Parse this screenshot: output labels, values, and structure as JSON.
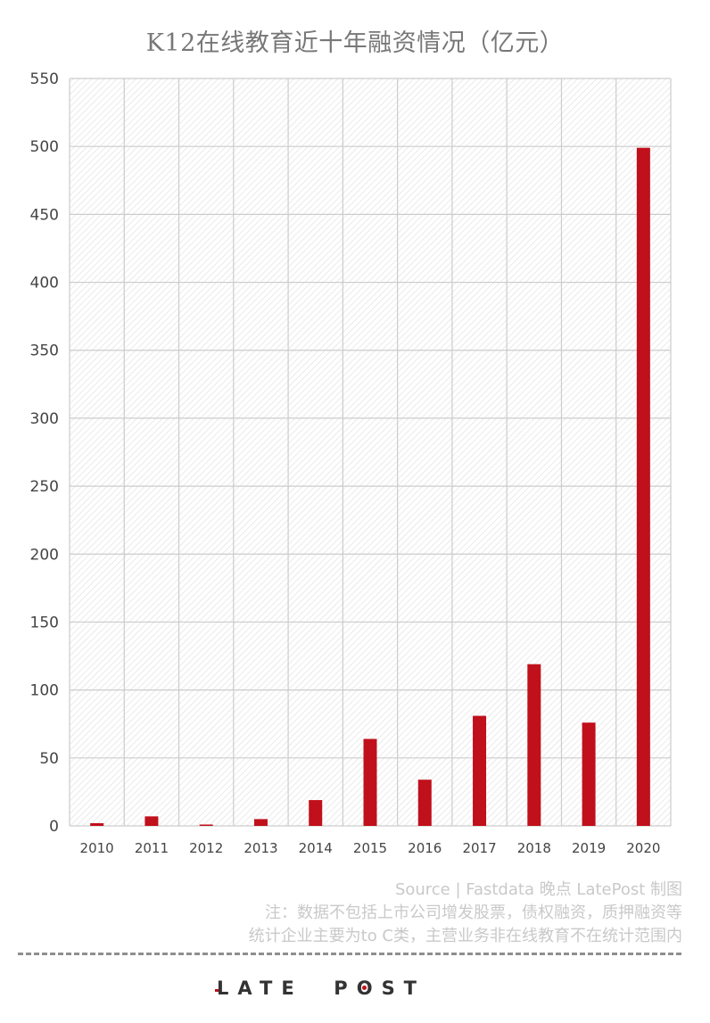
{
  "chart_data": {
    "type": "bar",
    "title": "K12在线教育近十年融资情况（亿元）",
    "categories": [
      "2010",
      "2011",
      "2012",
      "2013",
      "2014",
      "2015",
      "2016",
      "2017",
      "2018",
      "2019",
      "2020"
    ],
    "values": [
      2,
      7,
      1,
      5,
      19,
      64,
      34,
      81,
      119,
      76,
      499
    ],
    "ylim": [
      0,
      550
    ],
    "yticks": [
      "0",
      "50",
      "100",
      "150",
      "200",
      "250",
      "300",
      "350",
      "400",
      "450",
      "500",
      "550"
    ],
    "xlabel": "",
    "ylabel": "",
    "grid": true,
    "bar_color": "#c0101b"
  },
  "footer": {
    "source": "Source | Fastdata    晚点 LatePost 制图",
    "note_line_1": "注：数据不包括上市公司增发股票，债权融资，质押融资等",
    "note_line_2": "统计企业主要为to C类，主营业务非在线教育不在统计范围内"
  },
  "brand": {
    "logo_text": "LATE POST",
    "logo_accent_color": "#c0101b"
  }
}
